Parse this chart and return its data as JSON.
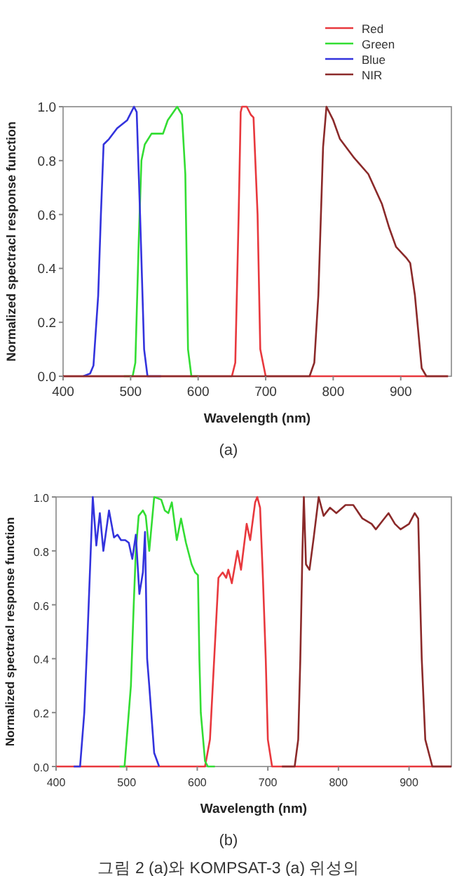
{
  "chart_data": [
    {
      "type": "line",
      "xlabel": "Wavelength (nm)",
      "ylabel": "Normalized spectracl response function",
      "annotations": [
        "(a)"
      ],
      "xlim": [
        400,
        975
      ],
      "ylim": [
        0,
        1
      ],
      "xticks": [
        400,
        500,
        600,
        700,
        800,
        900
      ],
      "yticks": [
        {
          "value": 0,
          "label": "0.0"
        },
        {
          "value": 0.2,
          "label": "0.2"
        },
        {
          "value": 0.4,
          "label": "0.4"
        },
        {
          "value": 0.6,
          "label": "0.6"
        },
        {
          "value": 0.8,
          "label": "0.8"
        },
        {
          "value": 1,
          "label": "1.0"
        }
      ],
      "grid": false,
      "legend": "top right",
      "marker": "none",
      "line_style": "solid",
      "series": [
        {
          "name": "Red",
          "color": "#e8383d",
          "x": [
            400,
            650,
            655,
            660,
            663,
            665,
            672,
            678,
            682,
            688,
            692,
            700,
            970
          ],
          "values": [
            0,
            0,
            0.05,
            0.6,
            0.98,
            1.0,
            1.0,
            0.97,
            0.96,
            0.6,
            0.1,
            0,
            0
          ]
        },
        {
          "name": "Green",
          "color": "#33dd33",
          "x": [
            490,
            503,
            507,
            512,
            516,
            521,
            531,
            548,
            555,
            569,
            576,
            581,
            585,
            590,
            600
          ],
          "values": [
            0,
            0,
            0.05,
            0.5,
            0.8,
            0.86,
            0.9,
            0.9,
            0.95,
            1.0,
            0.97,
            0.75,
            0.1,
            0,
            0
          ]
        },
        {
          "name": "Blue",
          "color": "#3333dd",
          "x": [
            430,
            440,
            445,
            452,
            456,
            460,
            468,
            480,
            495,
            505,
            509,
            514,
            520,
            525,
            545
          ],
          "values": [
            0,
            0.01,
            0.04,
            0.3,
            0.6,
            0.86,
            0.88,
            0.92,
            0.95,
            1.0,
            0.98,
            0.6,
            0.1,
            0,
            0
          ]
        },
        {
          "name": "NIR",
          "color": "#8b2a2a",
          "x": [
            400,
            765,
            772,
            778,
            785,
            790,
            800,
            810,
            831,
            852,
            872,
            883,
            893,
            908,
            914,
            921,
            931,
            938,
            970
          ],
          "values": [
            0,
            0,
            0.05,
            0.3,
            0.85,
            1.0,
            0.95,
            0.88,
            0.81,
            0.75,
            0.64,
            0.55,
            0.48,
            0.44,
            0.42,
            0.3,
            0.03,
            0,
            0
          ]
        }
      ]
    },
    {
      "type": "line",
      "xlabel": "Wavelength (nm)",
      "ylabel": "Normalized spectracl response function",
      "annotations": [
        "(b)",
        "그림 2 (a)와 KOMPSAT-3 (a) 위성의"
      ],
      "xlim": [
        400,
        960
      ],
      "ylim": [
        0,
        1
      ],
      "xticks": [
        400,
        500,
        600,
        700,
        800,
        900
      ],
      "yticks": [
        {
          "value": 0,
          "label": "0.0"
        },
        {
          "value": 0.2,
          "label": "0.2"
        },
        {
          "value": 0.4,
          "label": "0.4"
        },
        {
          "value": 0.6,
          "label": "0.6"
        },
        {
          "value": 0.8,
          "label": "0.8"
        },
        {
          "value": 1,
          "label": "1.0"
        }
      ],
      "grid": false,
      "legend": false,
      "marker": "none",
      "line_style": "solid",
      "series": [
        {
          "color": "#e8383d",
          "x": [
            400,
            611,
            618,
            624,
            630,
            636,
            641,
            644,
            649,
            657,
            662,
            670,
            675,
            682,
            685,
            689,
            693,
            697,
            700,
            706,
            960
          ],
          "values": [
            0,
            0,
            0.1,
            0.4,
            0.7,
            0.72,
            0.7,
            0.73,
            0.68,
            0.8,
            0.73,
            0.9,
            0.84,
            0.98,
            1.0,
            0.96,
            0.7,
            0.4,
            0.1,
            0,
            0
          ]
        },
        {
          "color": "#33dd33",
          "x": [
            490,
            497,
            506,
            510,
            513,
            517,
            523,
            527,
            532,
            539,
            549,
            554,
            559,
            564,
            571,
            577,
            584,
            592,
            597,
            601,
            603,
            605,
            611,
            615,
            625
          ],
          "values": [
            0,
            0,
            0.3,
            0.6,
            0.8,
            0.93,
            0.95,
            0.93,
            0.8,
            1.0,
            0.99,
            0.95,
            0.94,
            0.98,
            0.84,
            0.92,
            0.83,
            0.75,
            0.72,
            0.71,
            0.4,
            0.2,
            0.02,
            0,
            0
          ]
        },
        {
          "color": "#3333dd",
          "x": [
            425,
            434,
            440,
            444,
            452,
            457,
            462,
            467,
            475,
            482,
            487,
            492,
            498,
            503,
            508,
            513,
            518,
            523,
            526,
            529,
            532,
            539,
            546
          ],
          "values": [
            0,
            0,
            0.2,
            0.45,
            1.0,
            0.82,
            0.94,
            0.8,
            0.95,
            0.85,
            0.86,
            0.84,
            0.84,
            0.83,
            0.77,
            0.86,
            0.64,
            0.72,
            0.87,
            0.4,
            0.3,
            0.05,
            0
          ]
        },
        {
          "color": "#8b2a2a",
          "x": [
            720,
            738,
            743,
            746,
            749,
            751,
            754,
            759,
            765,
            772,
            779,
            788,
            797,
            810,
            821,
            834,
            847,
            853,
            862,
            871,
            880,
            888,
            900,
            908,
            913,
            916,
            918,
            923,
            933,
            960
          ],
          "values": [
            0,
            0,
            0.1,
            0.4,
            0.8,
            1.0,
            0.75,
            0.73,
            0.85,
            1.0,
            0.93,
            0.96,
            0.94,
            0.97,
            0.97,
            0.92,
            0.9,
            0.88,
            0.91,
            0.94,
            0.9,
            0.88,
            0.9,
            0.94,
            0.92,
            0.6,
            0.4,
            0.1,
            0,
            0
          ]
        }
      ]
    }
  ]
}
